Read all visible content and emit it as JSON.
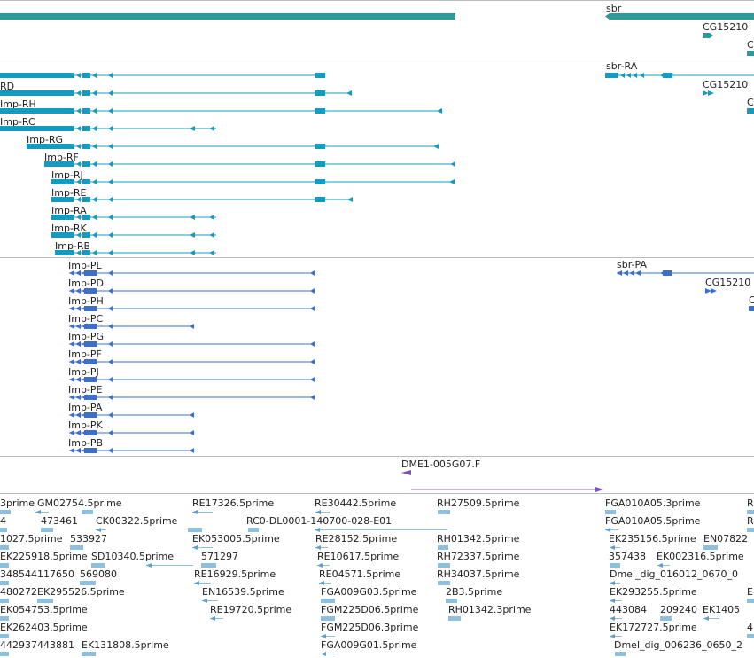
{
  "colors": {
    "gene": "#2a9a9a",
    "transcript": "#149bbf",
    "protein": "#3a6fd0",
    "est": "#8cbfe0",
    "est_dark": "#5aa0d0",
    "clone": "#7a4fb8",
    "divider": "#bbbbbb"
  },
  "tracks": {
    "genes": {
      "labels": [
        "sbr",
        "CG15210"
      ],
      "items": [
        {
          "label": "",
          "x1": 0,
          "x2": 514,
          "row": 0,
          "strand": "none"
        },
        {
          "label": "sbr",
          "x1": 683,
          "x2": 851,
          "row": 0,
          "strand": "left"
        },
        {
          "label": "CG15210",
          "x1": 793,
          "x2": 805,
          "row": 1,
          "strand": "right"
        },
        {
          "label": "C",
          "x1": 843,
          "x2": 851,
          "row": 2,
          "strand": "none"
        }
      ]
    },
    "transcripts": {
      "items": [
        {
          "label": "",
          "row": 0
        },
        {
          "label": "RD",
          "row": 1
        },
        {
          "label": "Imp-RH",
          "row": 2
        },
        {
          "label": "Imp-RC",
          "row": 3
        },
        {
          "label": "Imp-RG",
          "row": 4
        },
        {
          "label": "Imp-RF",
          "row": 5
        },
        {
          "label": "Imp-RJ",
          "row": 6
        },
        {
          "label": "Imp-RE",
          "row": 7
        },
        {
          "label": "Imp-RA",
          "row": 8
        },
        {
          "label": "Imp-RK",
          "row": 9
        },
        {
          "label": "Imp-RB",
          "row": 10
        }
      ],
      "right": [
        {
          "label": "sbr-RA",
          "row": 0
        },
        {
          "label": "CG15210",
          "row": 1
        },
        {
          "label": "C",
          "row": 2
        }
      ]
    },
    "proteins": {
      "items": [
        {
          "label": "Imp-PL",
          "end": 355
        },
        {
          "label": "Imp-PD",
          "end": 355
        },
        {
          "label": "Imp-PH",
          "end": 355
        },
        {
          "label": "Imp-PC",
          "end": 219
        },
        {
          "label": "Imp-PG",
          "end": 355
        },
        {
          "label": "Imp-PF",
          "end": 355
        },
        {
          "label": "Imp-PJ",
          "end": 355
        },
        {
          "label": "Imp-PE",
          "end": 355
        },
        {
          "label": "Imp-PA",
          "end": 219
        },
        {
          "label": "Imp-PK",
          "end": 219
        },
        {
          "label": "Imp-PB",
          "end": 219
        }
      ],
      "right": [
        {
          "label": "sbr-PA",
          "row": 0
        },
        {
          "label": "CG15210",
          "row": 1
        },
        {
          "label": "C",
          "row": 2
        }
      ]
    },
    "clone": {
      "label": "DME1-005G07.F"
    },
    "ests": {
      "labels": [
        "3prime",
        "GM02754.5prime",
        "RE17326.5prime",
        "RE30442.5prime",
        "RH27509.5prime",
        "FGA010A05.3prime",
        "R",
        "4",
        "473461",
        "CK00322.5prime",
        "RC0-DL0001-140700-028-E01",
        "FGA010A05.5prime",
        "R",
        "1027.5prime",
        "533927",
        "EK053005.5prime",
        "RE28152.5prime",
        "RH01342.5prime",
        "EK235156.5prime",
        "EN07822",
        "EK225918.5prime",
        "SD10340.5prime",
        "571297",
        "RE10617.5prime",
        "RH72337.5prime",
        "357438",
        "EK002316.5prime",
        "348544117650",
        "569080",
        "RE16929.5prime",
        "RE04571.5prime",
        "RH34037.5prime",
        "Dmel_dig_016012_0670_0",
        "480272",
        "EK295526.5prime",
        "EN16539.5prime",
        "FGA009G03.5prime",
        "2B3.5prime",
        "EK293255.5prime",
        "E",
        "EK054753.5prime",
        "RE19720.5prime",
        "FGM225D06.5prime",
        "RH01342.3prime",
        "443084",
        "209240",
        "EK1405",
        "EK262403.5prime",
        "FGM225D06.3prime",
        "EK172727.5prime",
        "4",
        "442937443881",
        "EK131808.5prime",
        "FGA009G01.5prime",
        "Dmel_dig_006236_0650_2"
      ]
    }
  }
}
